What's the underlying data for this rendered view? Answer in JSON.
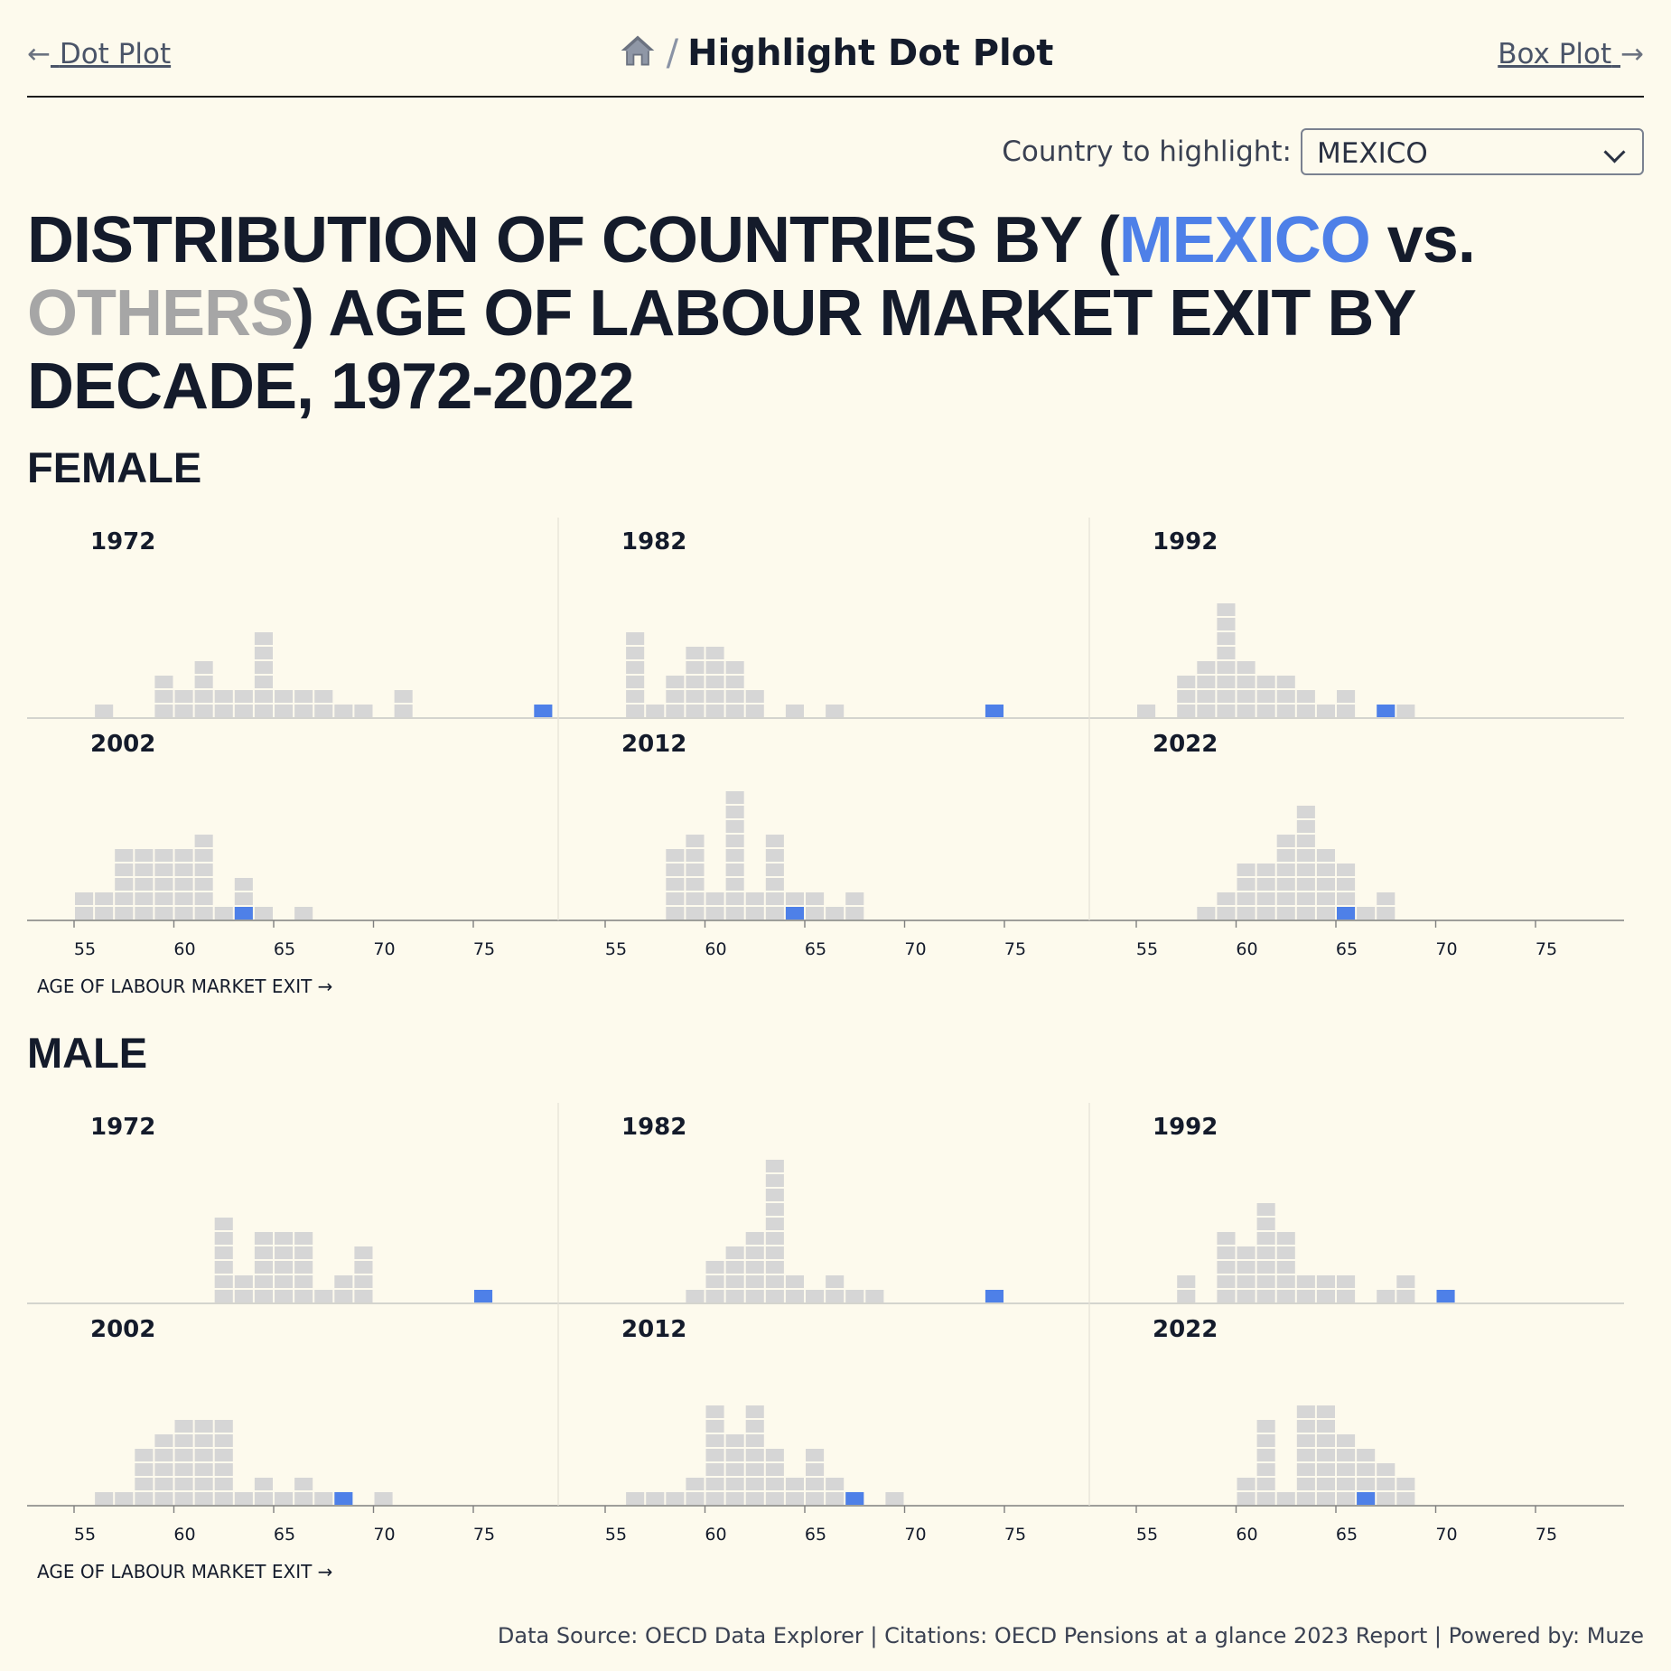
{
  "nav": {
    "prev_label": "Dot Plot",
    "next_label": "Box Plot",
    "prev_arrow": "←",
    "next_arrow": "→",
    "home_icon": "home-icon",
    "breadcrumb_sep": "/",
    "page_title": "Highlight Dot Plot"
  },
  "selector": {
    "label": "Country to highlight:",
    "value": "MEXICO"
  },
  "title": {
    "part1": "DISTRIBUTION OF COUNTRIES BY (",
    "highlight": "MEXICO",
    "part2": " vs. ",
    "others": "OTHERS",
    "part3": ") AGE OF LABOUR MARKET EXIT BY DECADE, 1972-2022"
  },
  "colors": {
    "highlight": "#4e80e8",
    "others": "#d6d6d6",
    "text": "#141b2b",
    "background": "#fdfaed"
  },
  "footer": "Data Source: OECD Data Explorer | Citations: OECD Pensions at a glance 2023 Report | Powered by: Muze",
  "chart_data": {
    "type": "dot-histogram",
    "xlabel": "AGE OF LABOUR MARKET EXIT →",
    "xticks": [
      55,
      60,
      65,
      70,
      75
    ],
    "xlim": [
      54.5,
      80
    ],
    "highlight_country": "MEXICO",
    "panels": [
      {
        "sex": "FEMALE",
        "year": "1972",
        "counts": {
          "56": 1,
          "59": 3,
          "60": 2,
          "61": 4,
          "62": 2,
          "63": 2,
          "64": 6,
          "65": 2,
          "66": 2,
          "67": 2,
          "68": 1,
          "69": 1,
          "71": 2
        },
        "highlight": 78.5
      },
      {
        "sex": "FEMALE",
        "year": "1982",
        "counts": {
          "56": 6,
          "57": 1,
          "58": 3,
          "59": 5,
          "60": 5,
          "61": 4,
          "62": 2,
          "64": 1,
          "66": 1
        },
        "highlight": 74.5
      },
      {
        "sex": "FEMALE",
        "year": "1992",
        "counts": {
          "55": 1,
          "57": 3,
          "58": 4,
          "59": 8,
          "60": 4,
          "61": 3,
          "62": 3,
          "63": 2,
          "64": 1,
          "65": 2,
          "68": 1
        },
        "highlight": 67.5
      },
      {
        "sex": "FEMALE",
        "year": "2002",
        "counts": {
          "55": 2,
          "56": 2,
          "57": 5,
          "58": 5,
          "59": 5,
          "60": 5,
          "61": 6,
          "62": 1,
          "63": 3,
          "64": 1,
          "66": 1
        },
        "highlight": 63.5
      },
      {
        "sex": "FEMALE",
        "year": "2012",
        "counts": {
          "58": 5,
          "59": 6,
          "60": 2,
          "61": 9,
          "62": 2,
          "63": 6,
          "64": 2,
          "65": 2,
          "66": 1,
          "67": 2
        },
        "highlight": 64.5
      },
      {
        "sex": "FEMALE",
        "year": "2022",
        "counts": {
          "58": 1,
          "59": 2,
          "60": 4,
          "61": 4,
          "62": 6,
          "63": 8,
          "64": 5,
          "65": 4,
          "66": 1,
          "67": 2
        },
        "highlight": 65.5
      },
      {
        "sex": "MALE",
        "year": "1972",
        "counts": {
          "62": 6,
          "63": 2,
          "64": 5,
          "65": 5,
          "66": 5,
          "67": 1,
          "68": 2,
          "69": 4
        },
        "highlight": 75.5
      },
      {
        "sex": "MALE",
        "year": "1982",
        "counts": {
          "59": 1,
          "60": 3,
          "61": 4,
          "62": 5,
          "63": 10,
          "64": 2,
          "65": 1,
          "66": 2,
          "67": 1,
          "68": 1
        },
        "highlight": 74.5
      },
      {
        "sex": "MALE",
        "year": "1992",
        "counts": {
          "57": 2,
          "59": 5,
          "60": 4,
          "61": 7,
          "62": 5,
          "63": 2,
          "64": 2,
          "65": 2,
          "67": 1,
          "68": 2
        },
        "highlight": 70.5
      },
      {
        "sex": "MALE",
        "year": "2002",
        "counts": {
          "56": 1,
          "57": 1,
          "58": 4,
          "59": 5,
          "60": 6,
          "61": 6,
          "62": 6,
          "63": 1,
          "64": 2,
          "65": 1,
          "66": 2,
          "67": 1,
          "70": 1
        },
        "highlight": 68.5
      },
      {
        "sex": "MALE",
        "year": "2012",
        "counts": {
          "56": 1,
          "57": 1,
          "58": 1,
          "59": 2,
          "60": 7,
          "61": 5,
          "62": 7,
          "63": 4,
          "64": 2,
          "65": 4,
          "66": 2,
          "67": 1,
          "69": 1
        },
        "highlight": 67.5
      },
      {
        "sex": "MALE",
        "year": "2022",
        "counts": {
          "60": 2,
          "61": 6,
          "62": 1,
          "63": 7,
          "64": 7,
          "65": 5,
          "66": 4,
          "67": 3,
          "68": 2
        },
        "highlight": 66.5
      }
    ]
  }
}
